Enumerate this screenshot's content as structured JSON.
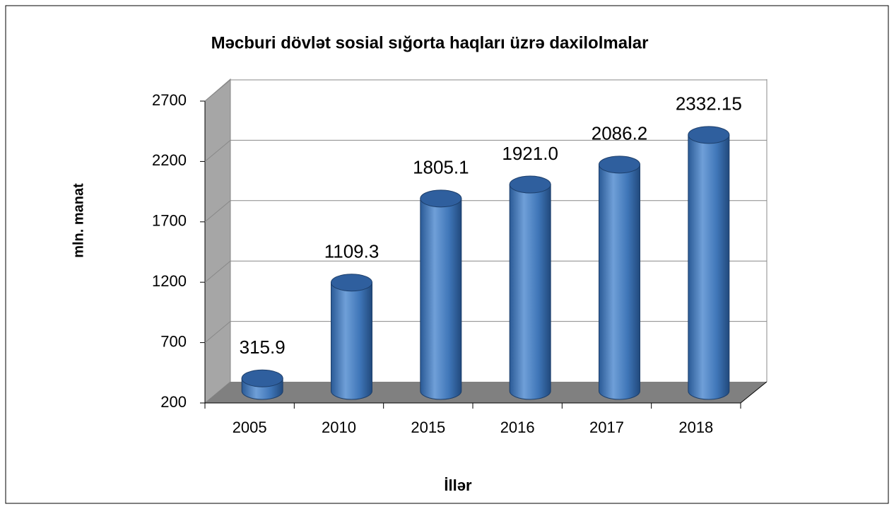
{
  "chart_data": {
    "type": "bar3d",
    "title": "Məcburi dövlət sosial sığorta haqları üzrə daxilolmalar",
    "y_label": "mln. manat",
    "x_label": "İllər",
    "categories": [
      "2005",
      "2010",
      "2015",
      "2016",
      "2017",
      "2018"
    ],
    "values": [
      315.9,
      1109.3,
      1805.1,
      1921.0,
      2086.2,
      2332.15
    ],
    "value_labels": [
      "315.9",
      "1109.3",
      "1805.1",
      "1921.0",
      "2086.2",
      "2332.15"
    ],
    "color": "#3f76b8",
    "ylim": [
      200,
      2700
    ],
    "yticks": [
      200,
      700,
      1200,
      1700,
      2200,
      2700
    ],
    "grid": true
  }
}
